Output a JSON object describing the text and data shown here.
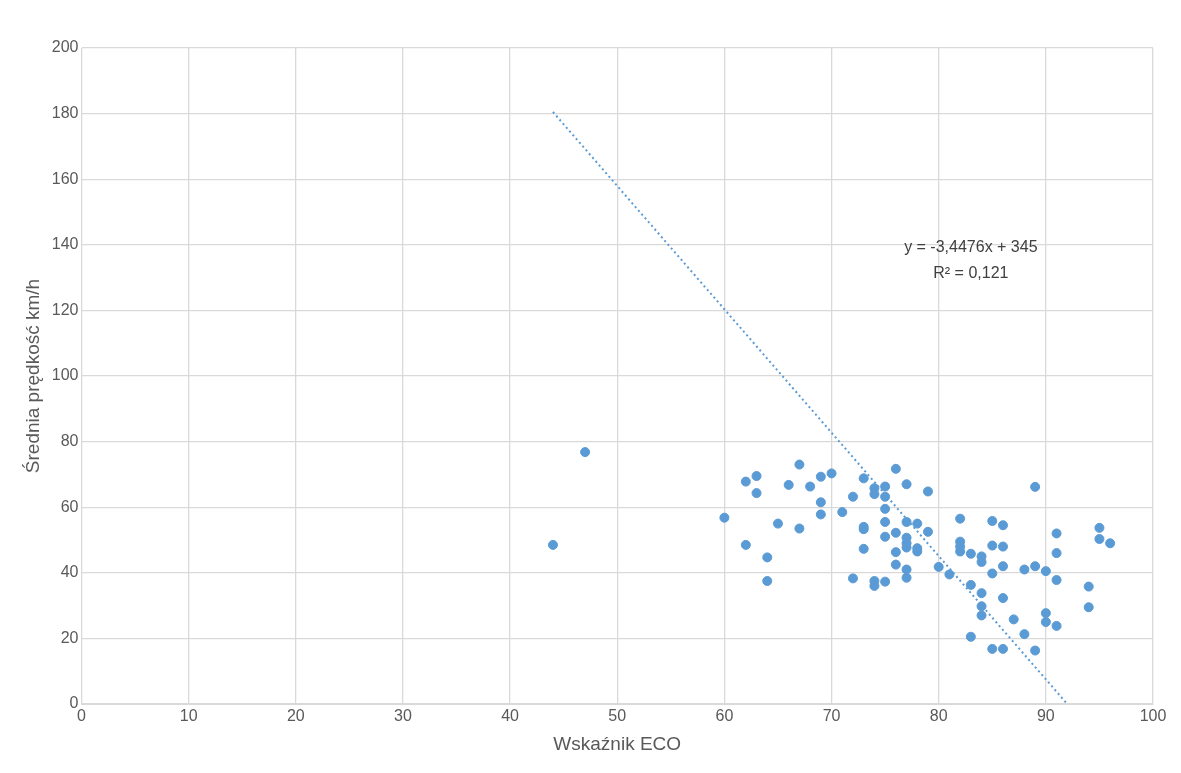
{
  "chart_data": {
    "type": "scatter",
    "xlabel": "Wskaźnik ECO",
    "ylabel": "Średnia prędkość km/h",
    "xlim": [
      0,
      100
    ],
    "xticks": [
      0,
      10,
      20,
      30,
      40,
      50,
      60,
      70,
      80,
      90,
      100
    ],
    "ylim": [
      0,
      200
    ],
    "yticks": [
      0,
      20,
      40,
      60,
      80,
      100,
      120,
      140,
      160,
      180,
      200
    ],
    "grid": true,
    "legend": false,
    "annotations": [
      "y = -3,4476x + 345\nR² = 0,121"
    ],
    "series": [
      {
        "color": "#5b9bd5",
        "marker": "circle",
        "x": [
          44,
          47,
          60,
          62,
          62,
          63,
          63,
          64,
          64,
          65,
          66,
          67,
          67,
          68,
          69,
          69,
          69,
          70,
          71,
          72,
          72,
          73,
          73,
          73,
          73,
          74,
          74,
          74,
          74,
          75,
          75,
          75,
          75,
          75,
          75,
          76,
          76,
          76,
          76,
          77,
          77,
          77,
          77,
          77,
          77,
          77,
          78,
          78,
          78,
          79,
          79,
          80,
          81,
          82,
          82,
          82,
          82,
          83,
          83,
          83,
          84,
          84,
          84,
          84,
          84,
          85,
          85,
          85,
          85,
          86,
          86,
          86,
          86,
          86,
          87,
          88,
          88,
          89,
          89,
          89,
          90,
          90,
          90,
          91,
          91,
          91,
          91,
          94,
          94,
          95,
          95,
          96
        ],
        "values": [
          48.5,
          76.8,
          56.8,
          67.8,
          48.5,
          69.5,
          64.3,
          44.7,
          37.5,
          55,
          66.8,
          73,
          53.5,
          66.3,
          69.3,
          61.5,
          57.8,
          70.3,
          58.5,
          63.2,
          38.3,
          68.8,
          54,
          53.3,
          47.3,
          65.8,
          64,
          37.5,
          36,
          66.3,
          63.2,
          59.5,
          55.5,
          51,
          37.3,
          71.7,
          52.2,
          46.3,
          42.5,
          67,
          55.5,
          50.7,
          49,
          47.7,
          41,
          38.5,
          55,
          47.5,
          46.5,
          64.8,
          52.5,
          41.8,
          39.5,
          56.5,
          49.5,
          48,
          46.5,
          45.8,
          36.3,
          20.5,
          45,
          43.3,
          33.8,
          29.8,
          27,
          55.8,
          48.3,
          39.8,
          16.8,
          54.5,
          48,
          42,
          32.3,
          16.8,
          25.8,
          41,
          21.3,
          66.2,
          42,
          16.3,
          40.5,
          27.7,
          25,
          52,
          46,
          37.8,
          23.8,
          35.8,
          29.5,
          53.7,
          50.3,
          49
        ]
      },
      {
        "type": "line",
        "color": "#5b9bd5",
        "marker": "none",
        "line_style": "dotted",
        "x": [
          44,
          92
        ],
        "values": [
          180.5,
          0
        ]
      }
    ]
  }
}
